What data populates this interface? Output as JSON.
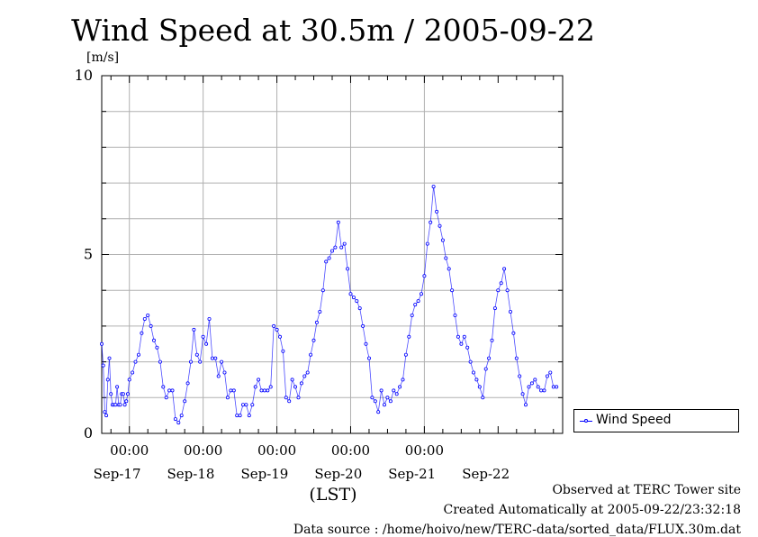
{
  "chart_data": {
    "type": "line",
    "title": "Wind Speed at 30.5m / 2005-09-22",
    "ylabel": "[m/s]",
    "xlabel": "(LST)",
    "ylim": [
      0,
      10
    ],
    "y_ticks": [
      "0",
      "5",
      "10"
    ],
    "x_tick_time_labels": [
      "00:00",
      "00:00",
      "00:00",
      "00:00",
      "00:00"
    ],
    "x_day_labels": [
      "Sep-17",
      "Sep-18",
      "Sep-19",
      "Sep-20",
      "Sep-21",
      "Sep-22"
    ],
    "grid": true,
    "legend_position": "bottom-right, outside plot",
    "series": [
      {
        "name": "Wind Speed",
        "color": "#0000ff",
        "x_hours_from_sep16_00": [
          15,
          15.5,
          16,
          16.5,
          17,
          17.5,
          18,
          18.5,
          19,
          19.5,
          20,
          20.5,
          21,
          21.5,
          22,
          22.5,
          23,
          23.5,
          24,
          25,
          26,
          27,
          28,
          29,
          30,
          31,
          32,
          33,
          34,
          35,
          36,
          37,
          38,
          39,
          40,
          41,
          42,
          43,
          44,
          45,
          46,
          47,
          48,
          49,
          50,
          51,
          52,
          53,
          54,
          55,
          56,
          57,
          58,
          59,
          60,
          61,
          62,
          63,
          64,
          65,
          66,
          67,
          68,
          69,
          70,
          71,
          72,
          73,
          74,
          75,
          76,
          77,
          78,
          79,
          80,
          81,
          82,
          83,
          84,
          85,
          86,
          87,
          88,
          89,
          90,
          91,
          92,
          93,
          94,
          95,
          96,
          97,
          98,
          99,
          100,
          101,
          102,
          103,
          104,
          105,
          106,
          107,
          108,
          109,
          110,
          111,
          112,
          113,
          114,
          115,
          116,
          117,
          118,
          119,
          120,
          121,
          122,
          123,
          124,
          125,
          126,
          127,
          128,
          129,
          130,
          131,
          132,
          133,
          134,
          135,
          136,
          137,
          138,
          139,
          140,
          141,
          142,
          143,
          144,
          145,
          146,
          147,
          148,
          149,
          150,
          151,
          152,
          153,
          154,
          155,
          156,
          157,
          158,
          159,
          160,
          161,
          162,
          163
        ],
        "values": [
          2.5,
          1.9,
          0.6,
          0.5,
          1.5,
          2.1,
          1.1,
          0.8,
          0.8,
          0.8,
          1.3,
          0.8,
          0.8,
          1.1,
          1.1,
          0.8,
          0.9,
          1.1,
          1.5,
          1.7,
          2.0,
          2.2,
          2.8,
          3.2,
          3.3,
          3.0,
          2.6,
          2.4,
          2.0,
          1.3,
          1.0,
          1.2,
          1.2,
          0.4,
          0.3,
          0.5,
          0.9,
          1.4,
          2.0,
          2.9,
          2.2,
          2.0,
          2.7,
          2.5,
          3.2,
          2.1,
          2.1,
          1.6,
          2.0,
          1.7,
          1.0,
          1.2,
          1.2,
          0.5,
          0.5,
          0.8,
          0.8,
          0.5,
          0.8,
          1.3,
          1.5,
          1.2,
          1.2,
          1.2,
          1.3,
          3.0,
          2.9,
          2.7,
          2.3,
          1.0,
          0.9,
          1.5,
          1.3,
          1.0,
          1.4,
          1.6,
          1.7,
          2.2,
          2.6,
          3.1,
          3.4,
          4.0,
          4.8,
          4.9,
          5.1,
          5.2,
          5.9,
          5.2,
          5.3,
          4.6,
          3.9,
          3.8,
          3.7,
          3.5,
          3.0,
          2.5,
          2.1,
          1.0,
          0.9,
          0.6,
          1.2,
          0.8,
          1.0,
          0.9,
          1.2,
          1.1,
          1.3,
          1.5,
          2.2,
          2.7,
          3.3,
          3.6,
          3.7,
          3.9,
          4.4,
          5.3,
          5.9,
          6.9,
          6.2,
          5.8,
          5.4,
          4.9,
          4.6,
          4.0,
          3.3,
          2.7,
          2.5,
          2.7,
          2.4,
          2.0,
          1.7,
          1.5,
          1.3,
          1.0,
          1.8,
          2.1,
          2.6,
          3.5,
          4.0,
          4.2,
          4.6,
          4.0,
          3.4,
          2.8,
          2.1,
          1.6,
          1.1,
          0.8,
          1.3,
          1.4,
          1.5,
          1.3,
          1.2,
          1.2,
          1.6,
          1.7,
          1.3,
          1.3
        ]
      }
    ]
  },
  "legend": {
    "label": "Wind Speed"
  },
  "footer": {
    "line1": "Observed at TERC Tower site",
    "line2": "Created Automatically at 2005-09-22/23:32:18",
    "line3": "Data source : /home/hoivo/new/TERC-data/sorted_data/FLUX.30m.dat"
  }
}
